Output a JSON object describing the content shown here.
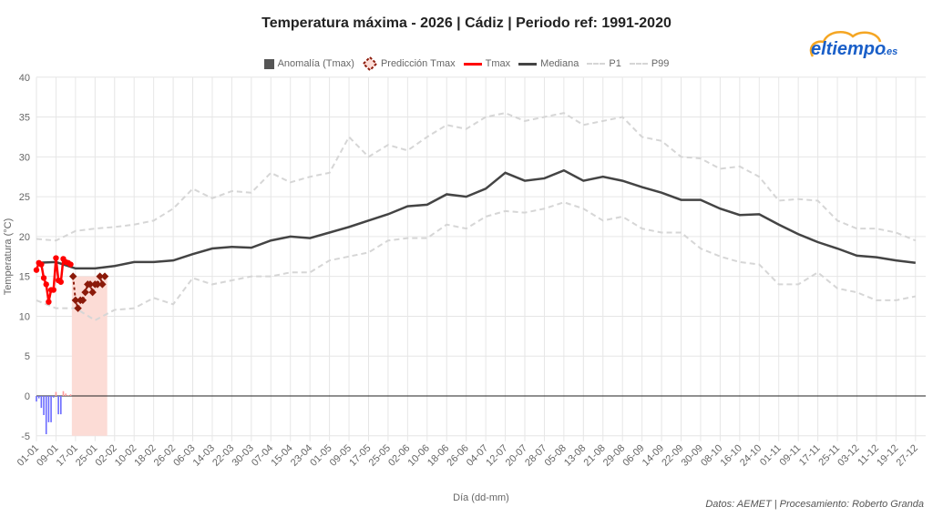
{
  "chart_data": {
    "type": "line",
    "title": "Temperatura máxima - 2026 | Cádiz | Periodo ref: 1991-2020",
    "xlabel": "Día (dd-mm)",
    "ylabel": "Temperatura (°C)",
    "ylim": [
      -5,
      40
    ],
    "yticks": [
      -5,
      0,
      5,
      10,
      15,
      20,
      25,
      30,
      35,
      40
    ],
    "tick_step_days": 8,
    "x_ticks": [
      "01-01",
      "09-01",
      "17-01",
      "25-01",
      "02-02",
      "10-02",
      "18-02",
      "26-02",
      "06-03",
      "14-03",
      "22-03",
      "30-03",
      "07-04",
      "15-04",
      "23-04",
      "01-05",
      "09-05",
      "17-05",
      "25-05",
      "02-06",
      "10-06",
      "18-06",
      "26-06",
      "04-07",
      "12-07",
      "20-07",
      "28-07",
      "05-08",
      "13-08",
      "21-08",
      "29-08",
      "06-09",
      "14-09",
      "22-09",
      "30-09",
      "08-10",
      "16-10",
      "24-10",
      "01-11",
      "09-11",
      "17-11",
      "25-11",
      "03-12",
      "11-12",
      "19-12",
      "27-12"
    ],
    "legend": [
      "Anomalía (Tmax)",
      "Predicción Tmax",
      "Tmax",
      "Mediana",
      "P1",
      "P99"
    ],
    "legend_position": "top",
    "grid": true,
    "colors": {
      "anom_neg": "#6b6bff",
      "anom_pos": "#ff9a9a",
      "pred": "#8b1a0a",
      "tmax": "#ff0000",
      "median": "#444444",
      "pct": "#d6d6d6",
      "shade": "#fcdcd6"
    },
    "series": [
      {
        "name": "Mediana",
        "values": [
          16.7,
          16.8,
          16.0,
          16.0,
          16.3,
          16.8,
          16.8,
          17.0,
          17.8,
          18.5,
          18.7,
          18.6,
          19.5,
          20.0,
          19.8,
          20.5,
          21.2,
          22.0,
          22.8,
          23.8,
          24.0,
          25.3,
          25.0,
          26.0,
          28.0,
          27.0,
          27.3,
          28.3,
          27.0,
          27.5,
          27.0,
          26.2,
          25.5,
          24.6,
          24.6,
          23.5,
          22.7,
          22.8,
          21.5,
          20.3,
          19.3,
          18.5,
          17.6,
          17.4,
          17.0,
          16.7
        ]
      },
      {
        "name": "P99",
        "values": [
          19.7,
          19.5,
          20.7,
          21.0,
          21.2,
          21.5,
          22.0,
          23.5,
          26.0,
          24.8,
          25.7,
          25.5,
          28.0,
          26.8,
          27.5,
          28.0,
          32.5,
          30.0,
          31.5,
          30.8,
          32.5,
          34.0,
          33.5,
          35.0,
          35.5,
          34.5,
          35.0,
          35.5,
          34.0,
          34.5,
          35.0,
          32.5,
          32.0,
          30.0,
          29.8,
          28.5,
          28.8,
          27.5,
          24.5,
          24.7,
          24.5,
          22.0,
          21.0,
          21.0,
          20.5,
          19.5
        ]
      },
      {
        "name": "P1",
        "values": [
          12.0,
          11.0,
          11.0,
          9.5,
          10.8,
          11.0,
          12.3,
          11.5,
          14.8,
          14.0,
          14.5,
          15.0,
          15.0,
          15.5,
          15.5,
          17.0,
          17.5,
          18.0,
          19.5,
          19.8,
          19.8,
          21.5,
          21.0,
          22.5,
          23.2,
          23.0,
          23.5,
          24.3,
          23.5,
          22.0,
          22.5,
          21.0,
          20.5,
          20.5,
          18.5,
          17.5,
          16.8,
          16.5,
          14.0,
          14.0,
          15.5,
          13.5,
          13.0,
          12.0,
          12.0,
          12.5
        ]
      },
      {
        "name": "Tmax",
        "start_day": 0,
        "values": [
          15.8,
          16.7,
          16.5,
          14.8,
          14.0,
          11.8,
          13.3,
          13.3,
          17.3,
          14.5,
          14.3,
          17.2,
          16.8,
          16.7,
          16.5
        ]
      },
      {
        "name": "Predicción Tmax",
        "start_day": 15,
        "values": [
          15,
          12,
          11,
          12,
          12,
          13,
          14,
          14,
          13,
          14,
          14,
          15,
          14,
          15
        ]
      },
      {
        "name": "Anomalía (Tmax)",
        "start_day": 0,
        "values": [
          -0.7,
          -0.3,
          -1.5,
          -2.4,
          -4.8,
          -3.3,
          -3.3,
          -0.2,
          0.5,
          -2.3,
          -2.3,
          0.6,
          0.3,
          0.1,
          0.2
        ]
      }
    ]
  },
  "logo": {
    "text": "eltiempo",
    "suffix": ".es"
  },
  "credit": "Datos: AEMET | Procesamiento: Roberto Granda"
}
